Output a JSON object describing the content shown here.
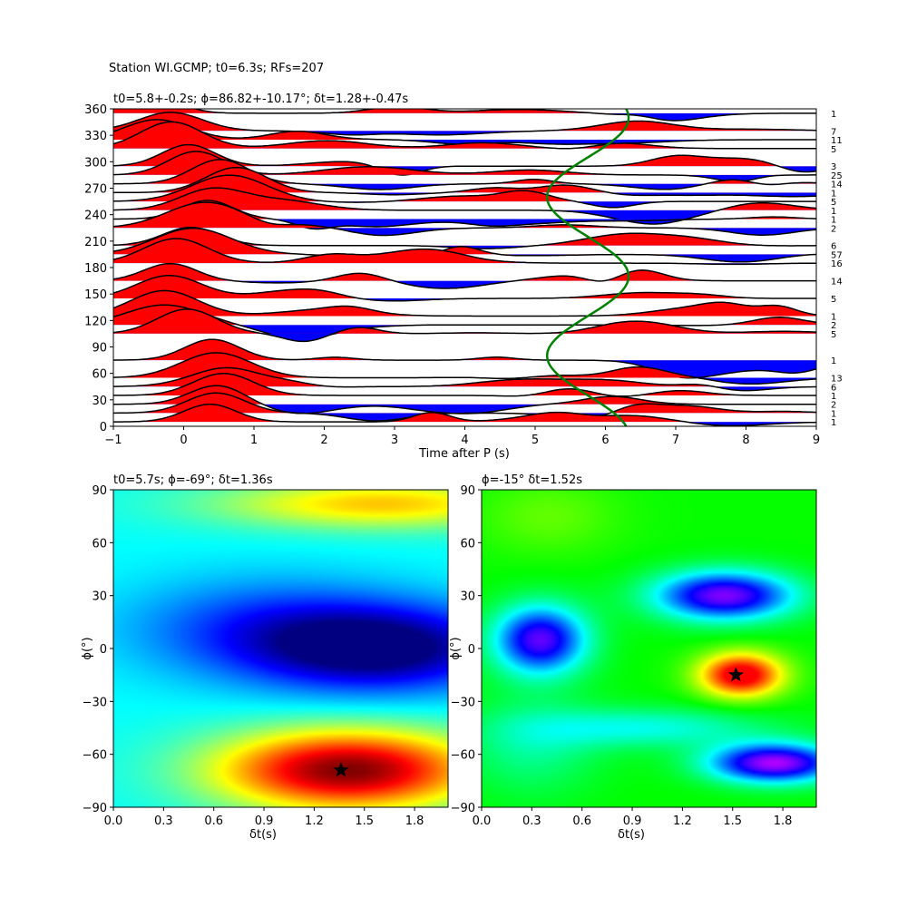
{
  "suptitle": "Station WI.GCMP; t0=6.3s; RFs=207",
  "chart_data": [
    {
      "type": "line",
      "title": "t0=5.8+-0.2s; ϕ=86.82+-10.17°; δt=1.28+-0.47s",
      "xlabel": "Time after P (s)",
      "ylabel": "",
      "xlim": [
        -1,
        9
      ],
      "ylim": [
        0,
        360
      ],
      "xticks": [
        "−1",
        "0",
        "1",
        "2",
        "3",
        "4",
        "5",
        "6",
        "7",
        "8",
        "9"
      ],
      "yticks": [
        "0",
        "30",
        "60",
        "90",
        "120",
        "150",
        "180",
        "210",
        "240",
        "270",
        "300",
        "330",
        "360"
      ],
      "positive_fill": "#ff0000",
      "negative_fill": "#0000ff",
      "trace_color": "#000000",
      "moveout_color": "#008000",
      "bins": [
        {
          "baz": 5,
          "count": "1"
        },
        {
          "baz": 15,
          "count": "1"
        },
        {
          "baz": 25,
          "count": "2"
        },
        {
          "baz": 35,
          "count": "1"
        },
        {
          "baz": 45,
          "count": "6"
        },
        {
          "baz": 55,
          "count": "13"
        },
        {
          "baz": 75,
          "count": "1"
        },
        {
          "baz": 105,
          "count": "5"
        },
        {
          "baz": 115,
          "count": "2"
        },
        {
          "baz": 125,
          "count": "1"
        },
        {
          "baz": 145,
          "count": "5"
        },
        {
          "baz": 165,
          "count": "14"
        },
        {
          "baz": 185,
          "count": "16"
        },
        {
          "baz": 195,
          "count": "57"
        },
        {
          "baz": 205,
          "count": "6"
        },
        {
          "baz": 225,
          "count": "2"
        },
        {
          "baz": 235,
          "count": "1"
        },
        {
          "baz": 245,
          "count": "1"
        },
        {
          "baz": 255,
          "count": "5"
        },
        {
          "baz": 265,
          "count": "1"
        },
        {
          "baz": 275,
          "count": "14"
        },
        {
          "baz": 285,
          "count": "25"
        },
        {
          "baz": 295,
          "count": "3"
        },
        {
          "baz": 315,
          "count": "5"
        },
        {
          "baz": 325,
          "count": "11"
        },
        {
          "baz": 335,
          "count": "7"
        },
        {
          "baz": 355,
          "count": "1"
        }
      ]
    },
    {
      "type": "heatmap",
      "title": "t0=5.7s; ϕ=-69°; δt=1.36s",
      "xlabel": "δt(s)",
      "ylabel": "ϕ(°)",
      "xlim": [
        0,
        2
      ],
      "ylim": [
        -90,
        90
      ],
      "xticks": [
        "0.0",
        "0.3",
        "0.6",
        "0.9",
        "1.2",
        "1.5",
        "1.8"
      ],
      "yticks": [
        "−90",
        "−60",
        "−30",
        "0",
        "30",
        "60",
        "90"
      ],
      "colormap": "jet",
      "best": {
        "dt": 1.36,
        "phi": -69
      }
    },
    {
      "type": "heatmap",
      "title": "ϕ=-15° δt=1.52s",
      "xlabel": "δt(s)",
      "ylabel": "ϕ(°)",
      "xlim": [
        0,
        2
      ],
      "ylim": [
        -90,
        90
      ],
      "xticks": [
        "0.0",
        "0.3",
        "0.6",
        "0.9",
        "1.2",
        "1.5",
        "1.8"
      ],
      "yticks": [
        "−90",
        "−60",
        "−30",
        "0",
        "30",
        "60",
        "90"
      ],
      "colormap": "hsv",
      "best": {
        "dt": 1.52,
        "phi": -15
      }
    }
  ]
}
